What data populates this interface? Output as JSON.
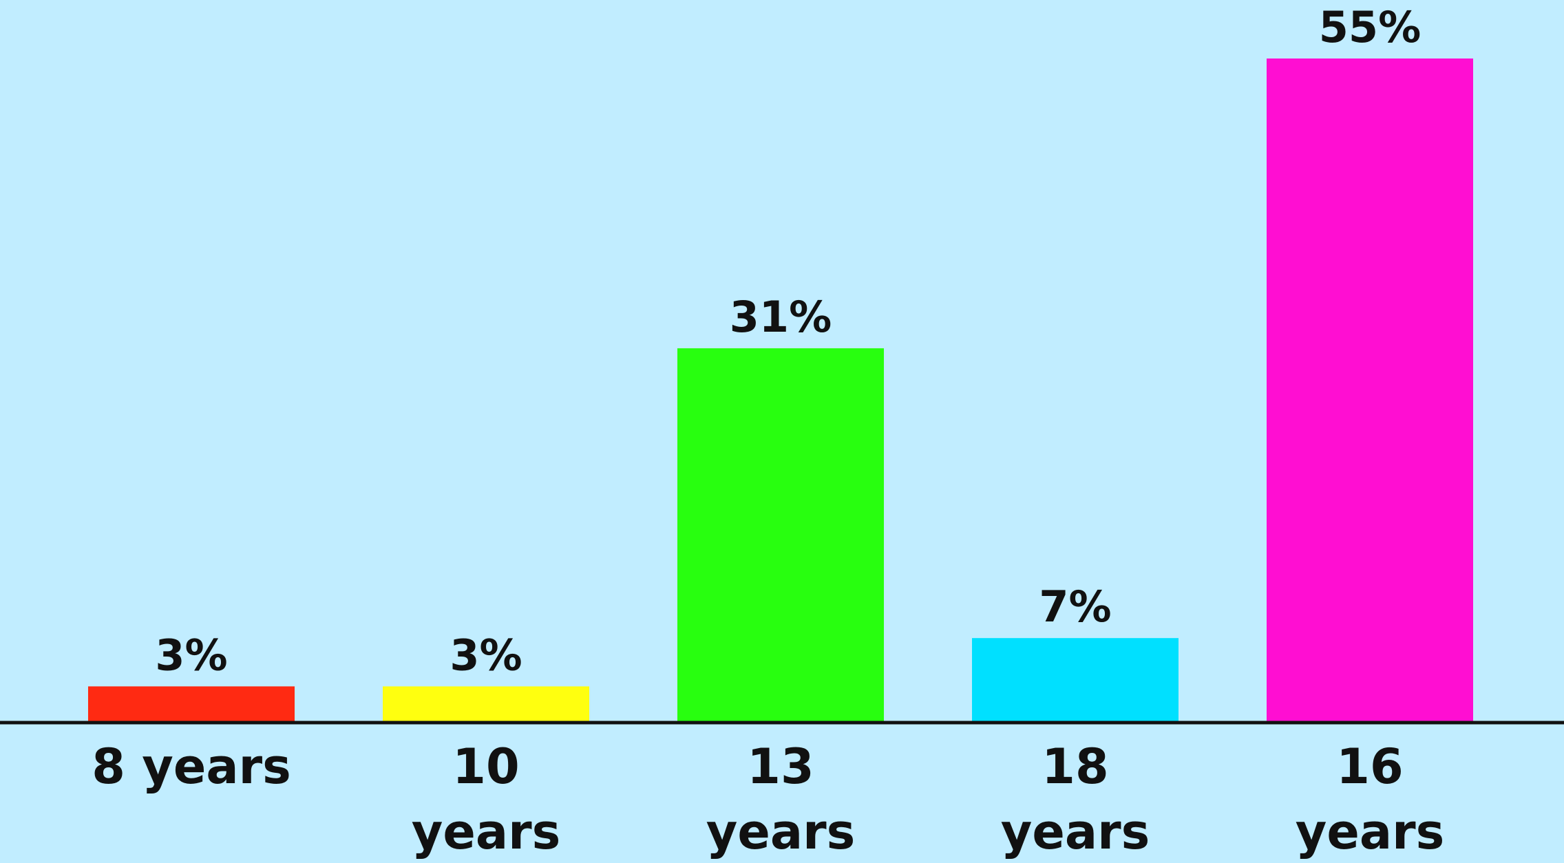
{
  "chart_data": {
    "type": "bar",
    "categories": [
      [
        "8 years"
      ],
      [
        "10",
        "years"
      ],
      [
        "13",
        "years"
      ],
      [
        "18",
        "years"
      ],
      [
        "16",
        "years"
      ]
    ],
    "values": [
      3,
      3,
      31,
      7,
      55
    ],
    "data_labels": [
      "3%",
      "3%",
      "31%",
      "7%",
      "55%"
    ],
    "unit": "%",
    "colors": [
      "#ff2a12",
      "#ffff0f",
      "#28ff0f",
      "#00e0ff",
      "#ff0ed2"
    ],
    "background_color": "#c1edff",
    "axis_color": "#111111",
    "ylim": [
      0,
      55
    ],
    "grid": false,
    "legend": "none",
    "y_axis_visible": false,
    "title": "",
    "xlabel": "",
    "ylabel": ""
  }
}
